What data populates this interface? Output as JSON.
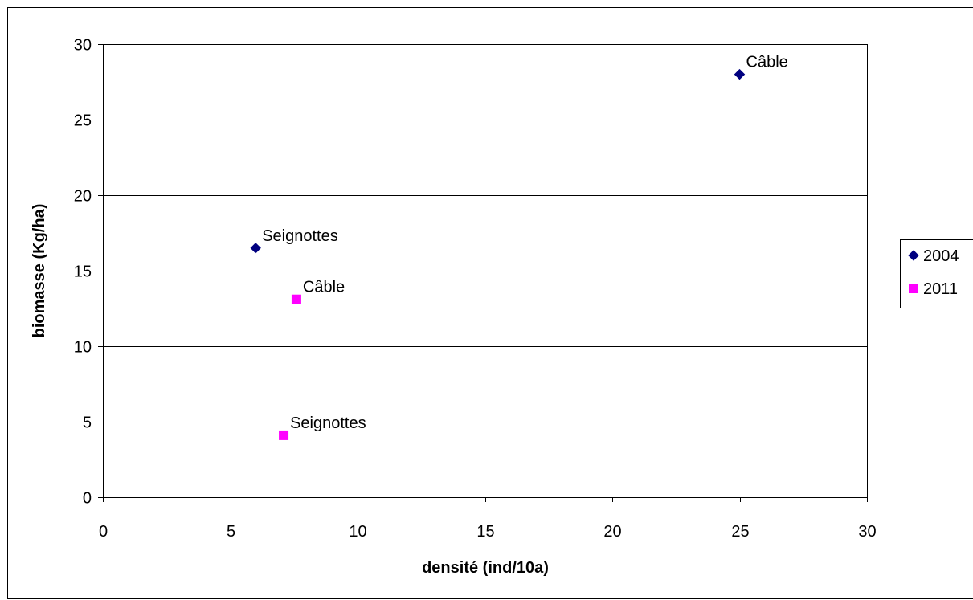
{
  "chart_data": {
    "type": "scatter",
    "xlabel": "densité (ind/10a)",
    "ylabel": "biomasse (Kg/ha)",
    "xlim": [
      0,
      30
    ],
    "ylim": [
      0,
      30
    ],
    "xticks": [
      0,
      5,
      10,
      15,
      20,
      25,
      30
    ],
    "yticks": [
      0,
      5,
      10,
      15,
      20,
      25,
      30
    ],
    "grid": "horizontal major gridlines",
    "legend_position": "right",
    "series": [
      {
        "name": "2004",
        "marker": "diamond",
        "color": "#000080",
        "points": [
          {
            "x": 25,
            "y": 28,
            "label": "Câble"
          },
          {
            "x": 6,
            "y": 16.5,
            "label": "Seignottes"
          }
        ]
      },
      {
        "name": "2011",
        "marker": "square",
        "color": "#FF00FF",
        "points": [
          {
            "x": 7.6,
            "y": 13.1,
            "label": "Câble"
          },
          {
            "x": 7.1,
            "y": 4.1,
            "label": "Seignottes"
          }
        ]
      }
    ]
  }
}
